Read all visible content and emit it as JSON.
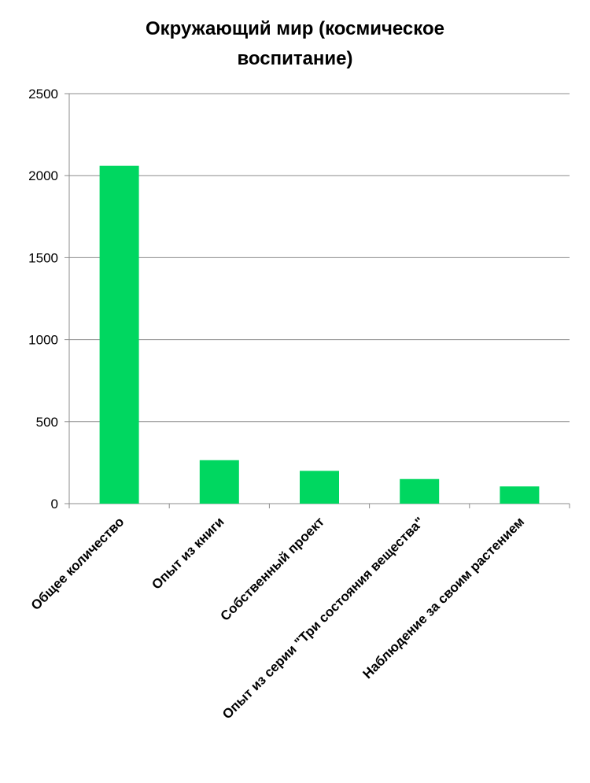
{
  "chart_data": {
    "type": "bar",
    "title_lines": [
      "Окружающий мир (космическое",
      "воспитание)"
    ],
    "categories": [
      "Общее количество",
      "Опыт из книги",
      "Собственный проект",
      "Опыт из серии \"Три состояния вещества\"",
      "Наблюдение за своим растением"
    ],
    "values": [
      2060,
      265,
      200,
      150,
      105
    ],
    "ylim": [
      0,
      2500
    ],
    "yticks": [
      "0",
      "500",
      "1000",
      "1500",
      "2000",
      "2500"
    ],
    "grid": true,
    "legend": "none",
    "bar_color": "#00d760",
    "grid_color": "#8c8c8c"
  }
}
